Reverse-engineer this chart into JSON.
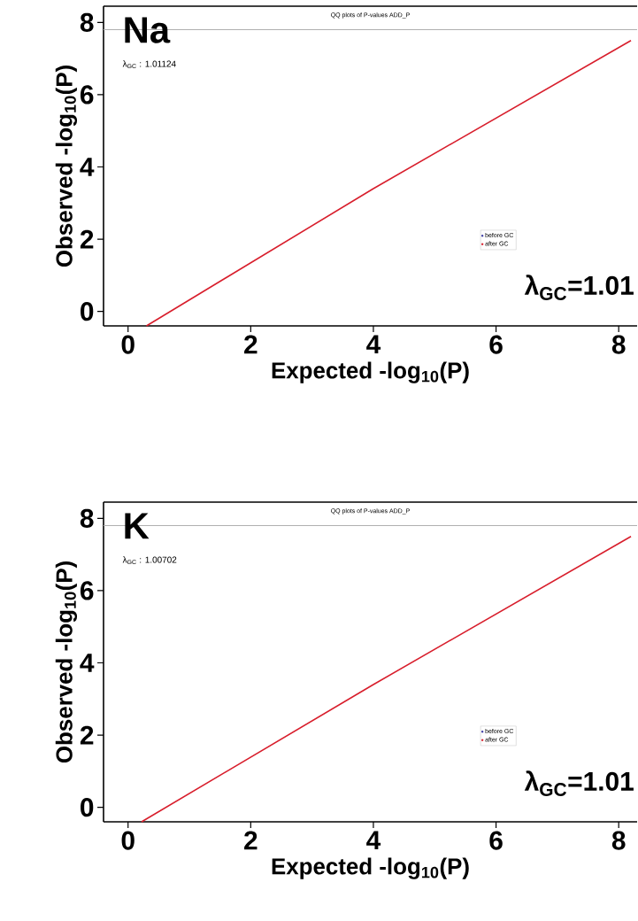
{
  "chart_data": [
    {
      "type": "line",
      "title": "QQ plots of P-values ADD_P",
      "xlabel": "Expected -log$_{10}$(P)",
      "ylabel": "Observed -log$_{10}$(P)",
      "annotations": [
        "Na",
        "λ$_{GC}$ : 1.01124",
        "λ$_{GC}$=1.01"
      ],
      "x": [
        0.3,
        4,
        8.2
      ],
      "series": [
        {
          "name": "before GC",
          "color": "#3030a0",
          "values": [
            null,
            null,
            null
          ]
        },
        {
          "name": "after GC",
          "color": "#d81e2c",
          "values": [
            -0.4,
            3.4,
            7.5
          ]
        }
      ],
      "ref_lines": [
        {
          "axis": "y",
          "value": 7.8,
          "color": "#b0b0b0"
        }
      ],
      "xlim": [
        -0.4,
        8.3
      ],
      "ylim": [
        -0.4,
        8.45
      ],
      "xticks": [
        0,
        2,
        4,
        6,
        8
      ],
      "yticks": [
        0,
        2,
        4,
        6,
        8
      ],
      "legend": "right",
      "marker": "none",
      "line_style": "solid"
    },
    {
      "type": "line",
      "title": "QQ plots of P-values ADD_P",
      "xlabel": "Expected -log$_{10}$(P)",
      "ylabel": "Observed -log$_{10}$(P)",
      "annotations": [
        "K",
        "λ$_{GC}$ : 1.00702",
        "λ$_{GC}$=1.01"
      ],
      "x": [
        0.22,
        4,
        8.2
      ],
      "series": [
        {
          "name": "before GC",
          "color": "#3030a0",
          "values": [
            null,
            null,
            null
          ]
        },
        {
          "name": "after GC",
          "color": "#d81e2c",
          "values": [
            -0.4,
            3.4,
            7.5
          ]
        }
      ],
      "ref_lines": [
        {
          "axis": "y",
          "value": 7.8,
          "color": "#b0b0b0"
        }
      ],
      "xlim": [
        -0.4,
        8.3
      ],
      "ylim": [
        -0.4,
        8.45
      ],
      "xticks": [
        0,
        2,
        4,
        6,
        8
      ],
      "yticks": [
        0,
        2,
        4,
        6,
        8
      ],
      "legend": "right",
      "marker": "none",
      "line_style": "solid"
    }
  ]
}
